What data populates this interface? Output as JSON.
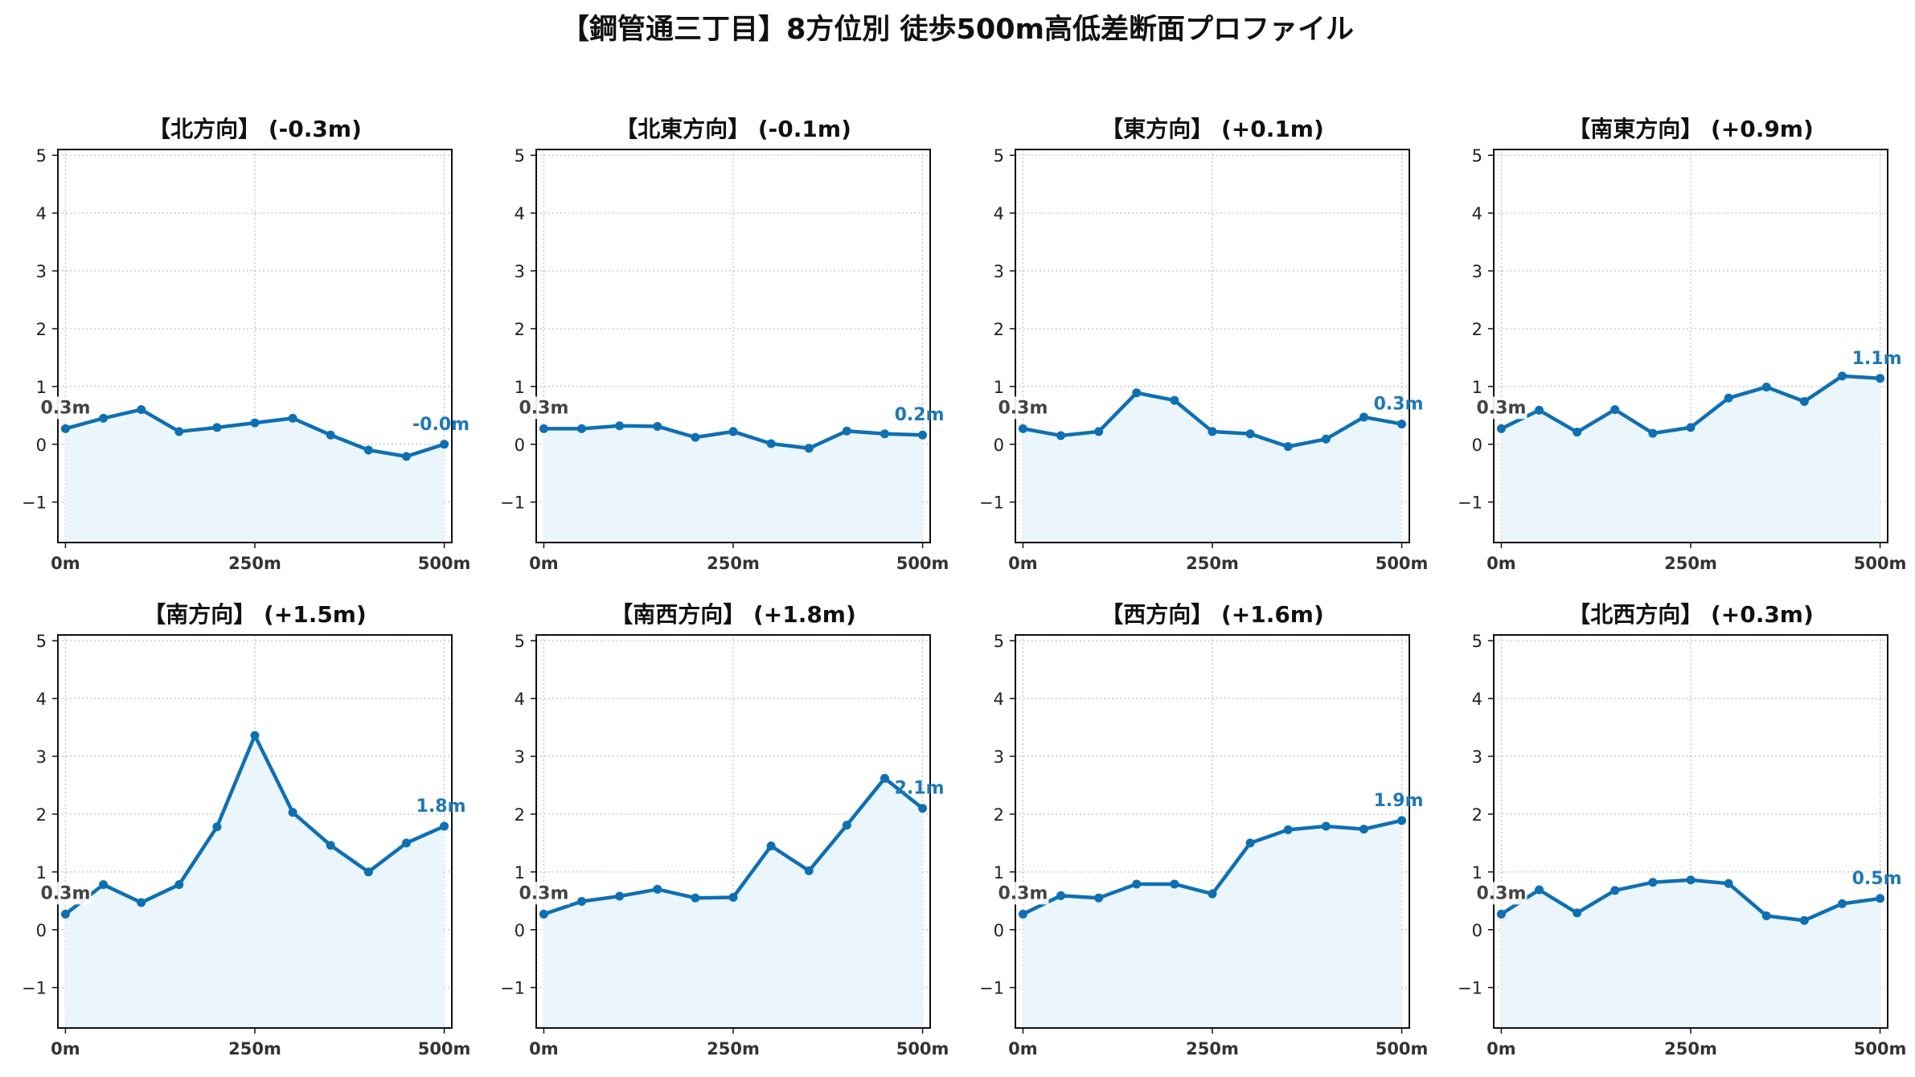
{
  "title": "【鋼管通三丁目】8方位別 徒歩500m高低差断面プロファイル",
  "colors": {
    "line": "#1f78b4",
    "line_dark": "#0f6fb3",
    "fill": "#eaf6fb",
    "label": "#1f78b4",
    "start_label": "#444444",
    "grid": "#bfbfbf"
  },
  "chart_data": [
    {
      "type": "line",
      "title": "【北方向】 (-0.3m)",
      "x": [
        0,
        50,
        100,
        150,
        200,
        250,
        300,
        350,
        400,
        450,
        500
      ],
      "values": [
        0.27,
        0.45,
        0.6,
        0.22,
        0.29,
        0.37,
        0.45,
        0.16,
        -0.1,
        -0.21,
        0.0
      ],
      "start_label": "0.3m",
      "end_label": "-0.0m",
      "x_ticks": [
        "0m",
        "250m",
        "500m"
      ],
      "y_ticks": [
        "−1",
        "0",
        "1",
        "2",
        "3",
        "4",
        "5"
      ],
      "xlim": [
        -10,
        510
      ],
      "ylim": [
        -1.7,
        5.1
      ],
      "grid": true
    },
    {
      "type": "line",
      "title": "【北東方向】 (-0.1m)",
      "x": [
        0,
        50,
        100,
        150,
        200,
        250,
        300,
        350,
        400,
        450,
        500
      ],
      "values": [
        0.27,
        0.27,
        0.32,
        0.31,
        0.12,
        0.22,
        0.01,
        -0.07,
        0.23,
        0.18,
        0.16
      ],
      "start_label": "0.3m",
      "end_label": "0.2m",
      "x_ticks": [
        "0m",
        "250m",
        "500m"
      ],
      "y_ticks": [
        "−1",
        "0",
        "1",
        "2",
        "3",
        "4",
        "5"
      ],
      "xlim": [
        -10,
        510
      ],
      "ylim": [
        -1.7,
        5.1
      ],
      "grid": true
    },
    {
      "type": "line",
      "title": "【東方向】 (+0.1m)",
      "x": [
        0,
        50,
        100,
        150,
        200,
        250,
        300,
        350,
        400,
        450,
        500
      ],
      "values": [
        0.27,
        0.15,
        0.22,
        0.89,
        0.76,
        0.22,
        0.18,
        -0.04,
        0.09,
        0.47,
        0.35
      ],
      "start_label": "0.3m",
      "end_label": "0.3m",
      "x_ticks": [
        "0m",
        "250m",
        "500m"
      ],
      "y_ticks": [
        "−1",
        "0",
        "1",
        "2",
        "3",
        "4",
        "5"
      ],
      "xlim": [
        -10,
        510
      ],
      "ylim": [
        -1.7,
        5.1
      ],
      "grid": true
    },
    {
      "type": "line",
      "title": "【南東方向】 (+0.9m)",
      "x": [
        0,
        50,
        100,
        150,
        200,
        250,
        300,
        350,
        400,
        450,
        500
      ],
      "values": [
        0.27,
        0.59,
        0.21,
        0.6,
        0.19,
        0.29,
        0.8,
        0.99,
        0.74,
        1.18,
        1.14
      ],
      "start_label": "0.3m",
      "end_label": "1.1m",
      "x_ticks": [
        "0m",
        "250m",
        "500m"
      ],
      "y_ticks": [
        "−1",
        "0",
        "1",
        "2",
        "3",
        "4",
        "5"
      ],
      "xlim": [
        -10,
        510
      ],
      "ylim": [
        -1.7,
        5.1
      ],
      "grid": true
    },
    {
      "type": "line",
      "title": "【南方向】 (+1.5m)",
      "x": [
        0,
        50,
        100,
        150,
        200,
        250,
        300,
        350,
        400,
        450,
        500
      ],
      "values": [
        0.27,
        0.78,
        0.47,
        0.78,
        1.78,
        3.36,
        2.03,
        1.46,
        1.0,
        1.5,
        1.79
      ],
      "start_label": "0.3m",
      "end_label": "1.8m",
      "x_ticks": [
        "0m",
        "250m",
        "500m"
      ],
      "y_ticks": [
        "−1",
        "0",
        "1",
        "2",
        "3",
        "4",
        "5"
      ],
      "xlim": [
        -10,
        510
      ],
      "ylim": [
        -1.7,
        5.1
      ],
      "grid": true
    },
    {
      "type": "line",
      "title": "【南西方向】 (+1.8m)",
      "x": [
        0,
        50,
        100,
        150,
        200,
        250,
        300,
        350,
        400,
        450,
        500
      ],
      "values": [
        0.27,
        0.49,
        0.58,
        0.7,
        0.55,
        0.56,
        1.45,
        1.02,
        1.81,
        2.62,
        2.1
      ],
      "start_label": "0.3m",
      "end_label": "2.1m",
      "x_ticks": [
        "0m",
        "250m",
        "500m"
      ],
      "y_ticks": [
        "−1",
        "0",
        "1",
        "2",
        "3",
        "4",
        "5"
      ],
      "xlim": [
        -10,
        510
      ],
      "ylim": [
        -1.7,
        5.1
      ],
      "grid": true
    },
    {
      "type": "line",
      "title": "【西方向】 (+1.6m)",
      "x": [
        0,
        50,
        100,
        150,
        200,
        250,
        300,
        350,
        400,
        450,
        500
      ],
      "values": [
        0.27,
        0.59,
        0.55,
        0.79,
        0.79,
        0.62,
        1.5,
        1.73,
        1.79,
        1.74,
        1.89
      ],
      "start_label": "0.3m",
      "end_label": "1.9m",
      "x_ticks": [
        "0m",
        "250m",
        "500m"
      ],
      "y_ticks": [
        "−1",
        "0",
        "1",
        "2",
        "3",
        "4",
        "5"
      ],
      "xlim": [
        -10,
        510
      ],
      "ylim": [
        -1.7,
        5.1
      ],
      "grid": true
    },
    {
      "type": "line",
      "title": "【北西方向】 (+0.3m)",
      "x": [
        0,
        50,
        100,
        150,
        200,
        250,
        300,
        350,
        400,
        450,
        500
      ],
      "values": [
        0.27,
        0.69,
        0.29,
        0.68,
        0.82,
        0.86,
        0.8,
        0.24,
        0.16,
        0.45,
        0.54
      ],
      "start_label": "0.3m",
      "end_label": "0.5m",
      "x_ticks": [
        "0m",
        "250m",
        "500m"
      ],
      "y_ticks": [
        "−1",
        "0",
        "1",
        "2",
        "3",
        "4",
        "5"
      ],
      "xlim": [
        -10,
        510
      ],
      "ylim": [
        -1.7,
        5.1
      ],
      "grid": true
    }
  ]
}
